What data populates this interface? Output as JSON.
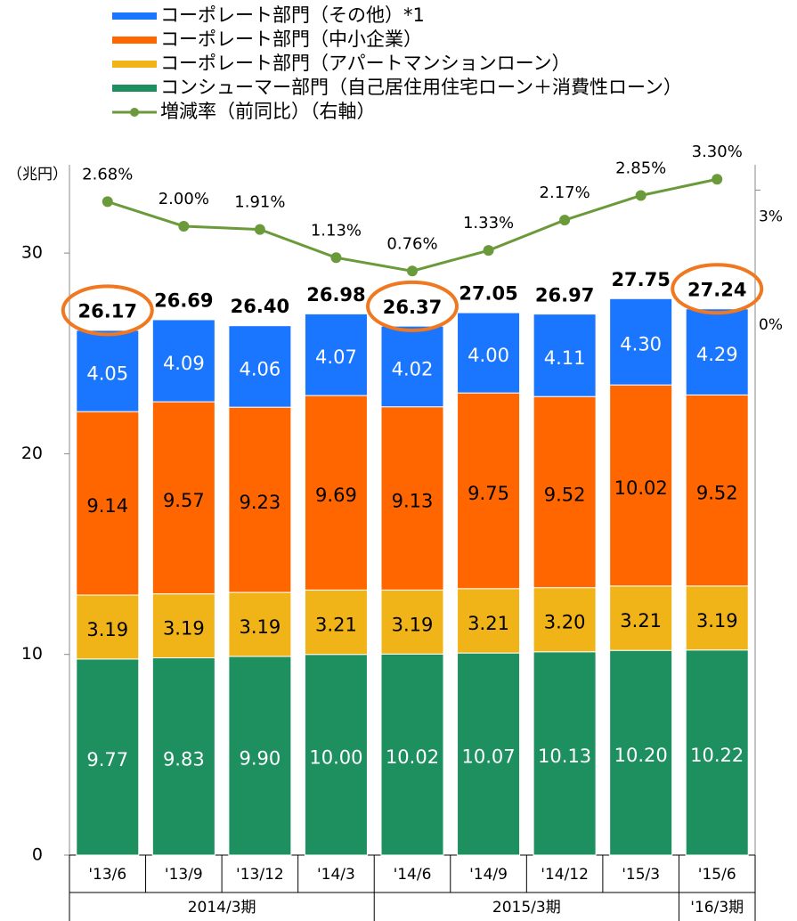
{
  "chart_data": {
    "type": "bar",
    "unit_label": "（兆円）",
    "categories": [
      "'13/6",
      "'13/9",
      "'13/12",
      "'14/3",
      "'14/6",
      "'14/9",
      "'14/12",
      "'15/3",
      "'15/6"
    ],
    "groups": [
      "2014/3期",
      "2015/3期",
      "'16/3期"
    ],
    "series": [
      {
        "name": "コンシューマー部門（自己居住用住宅ローン＋消費性ローン）",
        "color": "#1e9060",
        "label_color": "#ffffff",
        "values": [
          9.77,
          9.83,
          9.9,
          10.0,
          10.02,
          10.07,
          10.13,
          10.2,
          10.22
        ],
        "value_labels": [
          "9.77",
          "9.83",
          "9.90",
          "10.00",
          "10.02",
          "10.07",
          "10.13",
          "10.20",
          "10.22"
        ]
      },
      {
        "name": "コーポレート部門（アパートマンションローン）",
        "color": "#f0b418",
        "label_color": "#000000",
        "values": [
          3.19,
          3.19,
          3.19,
          3.21,
          3.19,
          3.21,
          3.2,
          3.21,
          3.19
        ],
        "value_labels": [
          "3.19",
          "3.19",
          "3.19",
          "3.21",
          "3.19",
          "3.21",
          "3.20",
          "3.21",
          "3.19"
        ]
      },
      {
        "name": "コーポレート部門（中小企業）",
        "color": "#ff6600",
        "label_color": "#000000",
        "values": [
          9.14,
          9.57,
          9.23,
          9.69,
          9.13,
          9.75,
          9.52,
          10.02,
          9.52
        ],
        "value_labels": [
          "9.14",
          "9.57",
          "9.23",
          "9.69",
          "9.13",
          "9.75",
          "9.52",
          "10.02",
          "9.52"
        ]
      },
      {
        "name": "コーポレート部門（その他）*1",
        "color": "#1a75ff",
        "label_color": "#ffffff",
        "values": [
          4.05,
          4.09,
          4.06,
          4.07,
          4.02,
          4.0,
          4.11,
          4.3,
          4.29
        ],
        "value_labels": [
          "4.05",
          "4.09",
          "4.06",
          "4.07",
          "4.02",
          "4.00",
          "4.11",
          "4.30",
          "4.29"
        ]
      },
      {
        "name": "増減率（前同比）（右軸）",
        "color": "#6a9a3a",
        "type": "line",
        "axis": "y2",
        "values": [
          2.68,
          2.0,
          1.91,
          1.13,
          0.76,
          1.33,
          2.17,
          2.85,
          3.3
        ],
        "value_labels": [
          "2.68%",
          "2.00%",
          "1.91%",
          "1.13%",
          "0.76%",
          "1.33%",
          "2.17%",
          "2.85%",
          "3.30%"
        ]
      }
    ],
    "totals": [
      26.17,
      26.69,
      26.4,
      26.98,
      26.37,
      27.05,
      26.97,
      27.75,
      27.24
    ],
    "total_labels": [
      "26.17",
      "26.69",
      "26.40",
      "26.98",
      "26.37",
      "27.05",
      "26.97",
      "27.75",
      "27.24"
    ],
    "highlight_color": "#f07820",
    "ylim": [
      0,
      34.4
    ],
    "yticks": [
      0,
      10,
      20,
      30
    ],
    "y2lim": [
      -15.4,
      3.7
    ],
    "y2ticks": [
      {
        "value": 3,
        "label": "3%"
      },
      {
        "value": 0,
        "label": "0%"
      }
    ]
  }
}
